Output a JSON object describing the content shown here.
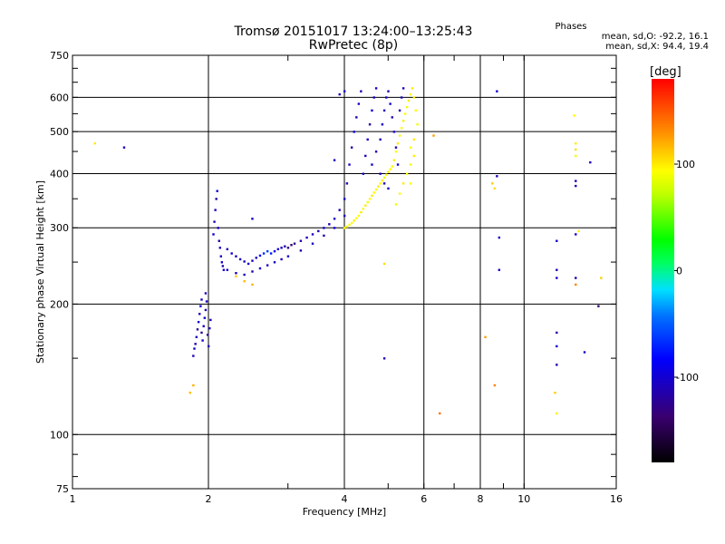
{
  "header": {
    "title": "Tromsø 20151017 13:24:00–13:25:43",
    "subtitle": "RwPretec (8p)"
  },
  "phase_box": {
    "title": "Phases",
    "line_o": "mean, sd,O: -92.2, 16.1",
    "line_x": "mean, sd,X: 94.4, 19.4"
  },
  "colorbar": {
    "title": "[deg]",
    "ticks": [
      {
        "value": 100,
        "label": "100"
      },
      {
        "value": 0,
        "label": "0"
      },
      {
        "value": -100,
        "label": "-100"
      }
    ],
    "range": [
      -180,
      180
    ]
  },
  "chart_data": {
    "type": "scatter",
    "title": "Tromsø 20151017 13:24:00–13:25:43",
    "subtitle": "RwPretec (8p)",
    "xlabel": "Frequency [MHz]",
    "ylabel": "Stationary phase Virtual Height [km]",
    "x_scale": "log",
    "y_scale": "log",
    "xlim": [
      1,
      16
    ],
    "ylim": [
      75,
      750
    ],
    "x_ticks": [
      {
        "value": 1,
        "label": "1"
      },
      {
        "value": 2,
        "label": "2"
      },
      {
        "value": 4,
        "label": "4"
      },
      {
        "value": 6,
        "label": "6"
      },
      {
        "value": 8,
        "label": "8"
      },
      {
        "value": 10,
        "label": "10"
      },
      {
        "value": 16,
        "label": "16"
      }
    ],
    "y_ticks": [
      {
        "value": 75,
        "label": "75"
      },
      {
        "value": 100,
        "label": "100"
      },
      {
        "value": 200,
        "label": "200"
      },
      {
        "value": 300,
        "label": "300"
      },
      {
        "value": 400,
        "label": "400"
      },
      {
        "value": 500,
        "label": "500"
      },
      {
        "value": 600,
        "label": "600"
      },
      {
        "value": 750,
        "label": "750"
      }
    ],
    "grid": true,
    "color_by": "phase [deg]",
    "series": [
      {
        "mode": "O",
        "points": [
          [
            1.85,
            152,
            -110
          ],
          [
            1.86,
            158,
            -100
          ],
          [
            1.87,
            162,
            -115
          ],
          [
            1.88,
            168,
            -105
          ],
          [
            1.89,
            175,
            -120
          ],
          [
            1.9,
            182,
            -100
          ],
          [
            1.91,
            190,
            -110
          ],
          [
            1.92,
            198,
            -95
          ],
          [
            1.93,
            172,
            -125
          ],
          [
            1.94,
            165,
            -105
          ],
          [
            1.95,
            178,
            -110
          ],
          [
            1.96,
            186,
            -100
          ],
          [
            1.97,
            194,
            -115
          ],
          [
            1.98,
            203,
            -105
          ],
          [
            1.99,
            170,
            -120
          ],
          [
            2.0,
            160,
            -110
          ],
          [
            2.01,
            176,
            -100
          ],
          [
            2.02,
            184,
            -115
          ],
          [
            1.93,
            205,
            -105
          ],
          [
            1.97,
            212,
            -110
          ],
          [
            2.05,
            290,
            -100
          ],
          [
            2.06,
            310,
            -110
          ],
          [
            2.07,
            330,
            -105
          ],
          [
            2.08,
            350,
            -115
          ],
          [
            2.09,
            365,
            -100
          ],
          [
            2.1,
            300,
            -110
          ],
          [
            2.11,
            280,
            -120
          ],
          [
            2.12,
            270,
            -105
          ],
          [
            2.13,
            258,
            -110
          ],
          [
            2.14,
            250,
            -100
          ],
          [
            2.15,
            245,
            -115
          ],
          [
            2.16,
            240,
            -105
          ],
          [
            2.2,
            268,
            -110
          ],
          [
            2.25,
            262,
            -100
          ],
          [
            2.3,
            258,
            -115
          ],
          [
            2.35,
            254,
            -105
          ],
          [
            2.4,
            251,
            -110
          ],
          [
            2.45,
            248,
            -100
          ],
          [
            2.5,
            252,
            -105
          ],
          [
            2.55,
            256,
            -110
          ],
          [
            2.6,
            259,
            -80
          ],
          [
            2.65,
            262,
            -70
          ],
          [
            2.7,
            265,
            -60
          ],
          [
            2.75,
            262,
            -75
          ],
          [
            2.8,
            265,
            -90
          ],
          [
            2.85,
            268,
            -100
          ],
          [
            2.9,
            270,
            -110
          ],
          [
            2.95,
            272,
            -120
          ],
          [
            3.0,
            270,
            -130
          ],
          [
            3.05,
            274,
            -140
          ],
          [
            3.1,
            276,
            -125
          ],
          [
            3.2,
            280,
            -115
          ],
          [
            3.3,
            285,
            -110
          ],
          [
            3.4,
            290,
            -105
          ],
          [
            3.5,
            295,
            -110
          ],
          [
            3.6,
            300,
            -100
          ],
          [
            3.7,
            306,
            -110
          ],
          [
            3.8,
            315,
            -105
          ],
          [
            3.9,
            330,
            -110
          ],
          [
            4.0,
            350,
            -100
          ],
          [
            4.05,
            380,
            -110
          ],
          [
            4.1,
            420,
            -105
          ],
          [
            4.15,
            460,
            -115
          ],
          [
            4.2,
            500,
            -100
          ],
          [
            4.25,
            540,
            -110
          ],
          [
            4.3,
            580,
            -105
          ],
          [
            4.35,
            620,
            -110
          ],
          [
            2.2,
            240,
            -100
          ],
          [
            2.3,
            236,
            -110
          ],
          [
            2.4,
            234,
            -105
          ],
          [
            2.5,
            238,
            -115
          ],
          [
            2.6,
            242,
            -100
          ],
          [
            2.7,
            246,
            -110
          ],
          [
            2.8,
            250,
            -105
          ],
          [
            2.9,
            254,
            -110
          ],
          [
            3.0,
            258,
            -100
          ],
          [
            3.2,
            266,
            -110
          ],
          [
            3.4,
            276,
            -105
          ],
          [
            3.6,
            288,
            -110
          ],
          [
            3.8,
            300,
            -100
          ],
          [
            4.0,
            320,
            -110
          ],
          [
            4.4,
            400,
            -100
          ],
          [
            4.45,
            440,
            -110
          ],
          [
            4.5,
            480,
            -105
          ],
          [
            4.55,
            520,
            -115
          ],
          [
            4.6,
            560,
            -100
          ],
          [
            4.65,
            600,
            -110
          ],
          [
            4.7,
            630,
            -105
          ],
          [
            4.8,
            480,
            -110
          ],
          [
            4.85,
            520,
            -100
          ],
          [
            4.9,
            560,
            -110
          ],
          [
            4.95,
            600,
            -105
          ],
          [
            5.0,
            620,
            -110
          ],
          [
            5.05,
            580,
            -100
          ],
          [
            5.1,
            540,
            -110
          ],
          [
            5.15,
            500,
            -105
          ],
          [
            5.2,
            460,
            -115
          ],
          [
            5.25,
            420,
            -100
          ],
          [
            5.3,
            560,
            -110
          ],
          [
            5.35,
            600,
            -105
          ],
          [
            5.4,
            630,
            -110
          ],
          [
            4.6,
            420,
            -100
          ],
          [
            4.7,
            450,
            -110
          ],
          [
            4.8,
            400,
            -105
          ],
          [
            4.9,
            380,
            -115
          ],
          [
            5.0,
            370,
            -100
          ],
          [
            1.3,
            460,
            -110
          ],
          [
            2.5,
            315,
            -100
          ],
          [
            3.8,
            430,
            -110
          ],
          [
            3.9,
            610,
            -105
          ],
          [
            4.0,
            620,
            -100
          ],
          [
            4.9,
            150,
            -110
          ],
          [
            8.7,
            620,
            -100
          ],
          [
            8.7,
            395,
            -110
          ],
          [
            8.8,
            285,
            -105
          ],
          [
            8.8,
            240,
            -110
          ],
          [
            11.8,
            280,
            -100
          ],
          [
            11.8,
            240,
            -110
          ],
          [
            11.8,
            230,
            -105
          ],
          [
            11.8,
            172,
            -110
          ],
          [
            11.8,
            160,
            -100
          ],
          [
            11.8,
            145,
            -110
          ],
          [
            13.0,
            385,
            -105
          ],
          [
            13.0,
            375,
            -110
          ],
          [
            13.0,
            290,
            -100
          ],
          [
            13.0,
            230,
            -110
          ],
          [
            13.6,
            155,
            -105
          ],
          [
            14.0,
            425,
            -110
          ],
          [
            14.6,
            198,
            -140
          ]
        ]
      },
      {
        "mode": "X",
        "points": [
          [
            4.0,
            300,
            95
          ],
          [
            4.05,
            302,
            100
          ],
          [
            4.1,
            305,
            90
          ],
          [
            4.15,
            308,
            95
          ],
          [
            4.2,
            312,
            100
          ],
          [
            4.25,
            316,
            95
          ],
          [
            4.3,
            320,
            90
          ],
          [
            4.35,
            326,
            100
          ],
          [
            4.4,
            332,
            95
          ],
          [
            4.45,
            338,
            100
          ],
          [
            4.5,
            344,
            90
          ],
          [
            4.55,
            350,
            95
          ],
          [
            4.6,
            356,
            100
          ],
          [
            4.65,
            362,
            95
          ],
          [
            4.7,
            368,
            90
          ],
          [
            4.75,
            374,
            100
          ],
          [
            4.8,
            380,
            95
          ],
          [
            4.85,
            386,
            100
          ],
          [
            4.9,
            392,
            90
          ],
          [
            4.95,
            398,
            95
          ],
          [
            5.0,
            404,
            100
          ],
          [
            5.05,
            410,
            95
          ],
          [
            5.1,
            416,
            90
          ],
          [
            5.15,
            430,
            100
          ],
          [
            5.2,
            450,
            95
          ],
          [
            5.25,
            470,
            100
          ],
          [
            5.3,
            490,
            90
          ],
          [
            5.35,
            510,
            95
          ],
          [
            5.4,
            530,
            100
          ],
          [
            5.45,
            550,
            95
          ],
          [
            5.5,
            570,
            90
          ],
          [
            5.55,
            590,
            100
          ],
          [
            5.6,
            610,
            95
          ],
          [
            5.65,
            630,
            100
          ],
          [
            5.2,
            340,
            90
          ],
          [
            5.3,
            360,
            95
          ],
          [
            5.4,
            380,
            100
          ],
          [
            5.5,
            400,
            95
          ],
          [
            5.6,
            420,
            90
          ],
          [
            5.7,
            440,
            100
          ],
          [
            5.6,
            460,
            95
          ],
          [
            5.7,
            480,
            100
          ],
          [
            5.8,
            520,
            90
          ],
          [
            5.75,
            560,
            95
          ],
          [
            5.7,
            600,
            100
          ],
          [
            5.6,
            380,
            95
          ],
          [
            2.3,
            232,
            110
          ],
          [
            2.4,
            226,
            115
          ],
          [
            2.5,
            222,
            120
          ],
          [
            4.9,
            248,
            105
          ],
          [
            6.3,
            490,
            125
          ],
          [
            6.5,
            112,
            140
          ],
          [
            8.2,
            168,
            125
          ],
          [
            8.5,
            380,
            110
          ],
          [
            8.6,
            370,
            105
          ],
          [
            8.6,
            130,
            135
          ],
          [
            11.7,
            125,
            110
          ],
          [
            11.8,
            112,
            100
          ],
          [
            12.9,
            545,
            95
          ],
          [
            13.0,
            470,
            100
          ],
          [
            13.0,
            455,
            105
          ],
          [
            13.0,
            440,
            90
          ],
          [
            13.2,
            295,
            100
          ],
          [
            13.0,
            222,
            135
          ],
          [
            14.8,
            230,
            110
          ],
          [
            1.12,
            470,
            100
          ],
          [
            1.82,
            125,
            115
          ],
          [
            1.85,
            130,
            120
          ]
        ]
      }
    ]
  }
}
